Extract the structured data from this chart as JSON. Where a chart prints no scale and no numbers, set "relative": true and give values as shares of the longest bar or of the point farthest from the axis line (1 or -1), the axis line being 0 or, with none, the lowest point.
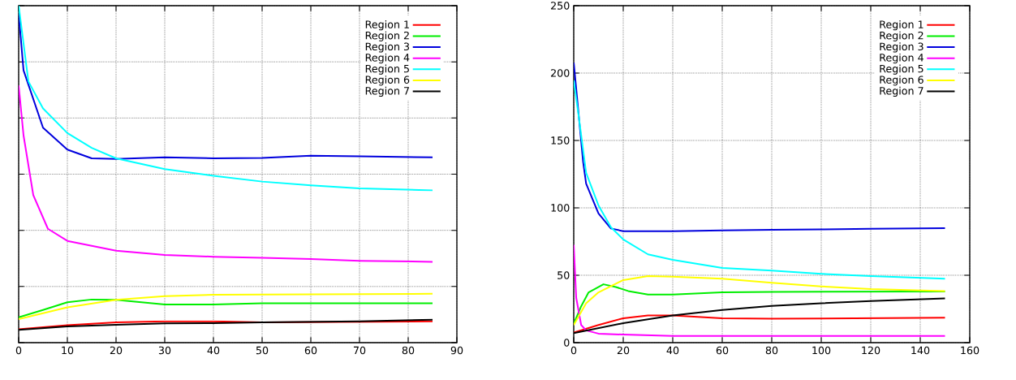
{
  "chart_data": [
    {
      "type": "line",
      "relative": true,
      "xlim": [
        0,
        90
      ],
      "xticks": [
        0,
        10,
        20,
        30,
        40,
        50,
        60,
        70,
        80,
        90
      ],
      "grid": true,
      "legend": "top right",
      "series": [
        {
          "name": "Region 1",
          "color": "#ff0000",
          "x": [
            0,
            10,
            20,
            30,
            40,
            50,
            85
          ],
          "values": [
            0.04,
            0.052,
            0.06,
            0.063,
            0.063,
            0.06,
            0.063
          ]
        },
        {
          "name": "Region 2",
          "color": "#00ee00",
          "x": [
            0,
            5,
            10,
            15,
            20,
            30,
            40,
            50,
            60,
            85
          ],
          "values": [
            0.075,
            0.097,
            0.12,
            0.128,
            0.127,
            0.113,
            0.113,
            0.117,
            0.117,
            0.117
          ]
        },
        {
          "name": "Region 3",
          "color": "#0000dd",
          "x": [
            0,
            1,
            5,
            10,
            15,
            20,
            30,
            40,
            50,
            60,
            70,
            85
          ],
          "values": [
            0.977,
            0.808,
            0.638,
            0.573,
            0.547,
            0.545,
            0.55,
            0.547,
            0.548,
            0.555,
            0.553,
            0.55
          ]
        },
        {
          "name": "Region 4",
          "color": "#ff00ff",
          "x": [
            0,
            1,
            3,
            6,
            10,
            20,
            30,
            40,
            50,
            60,
            70,
            85
          ],
          "values": [
            0.763,
            0.615,
            0.438,
            0.338,
            0.302,
            0.273,
            0.26,
            0.255,
            0.252,
            0.248,
            0.243,
            0.24
          ]
        },
        {
          "name": "Region 5",
          "color": "#00ffff",
          "x": [
            0,
            2,
            5,
            10,
            15,
            20,
            30,
            40,
            50,
            60,
            70,
            85
          ],
          "values": [
            1,
            0.775,
            0.695,
            0.622,
            0.578,
            0.547,
            0.515,
            0.495,
            0.478,
            0.467,
            0.458,
            0.452
          ]
        },
        {
          "name": "Region 6",
          "color": "#ffff00",
          "x": [
            0,
            10,
            20,
            30,
            40,
            50,
            85
          ],
          "values": [
            0.07,
            0.105,
            0.127,
            0.138,
            0.142,
            0.143,
            0.145
          ]
        },
        {
          "name": "Region 7",
          "color": "#000000",
          "x": [
            0,
            10,
            20,
            30,
            40,
            50,
            70,
            85
          ],
          "values": [
            0.038,
            0.048,
            0.053,
            0.057,
            0.058,
            0.06,
            0.063,
            0.068
          ]
        }
      ]
    },
    {
      "type": "line",
      "xlim": [
        0,
        160
      ],
      "xticks": [
        0,
        20,
        40,
        60,
        80,
        100,
        120,
        140,
        160
      ],
      "ylim": [
        0,
        250
      ],
      "yticks": [
        0,
        50,
        100,
        150,
        200,
        250
      ],
      "grid": true,
      "legend": "top right",
      "series": [
        {
          "name": "Region 1",
          "color": "#ff0000",
          "x": [
            0,
            10,
            20,
            30,
            40,
            60,
            80,
            150
          ],
          "values": [
            7.5,
            13.1,
            18.1,
            20.2,
            20.2,
            18.1,
            17.7,
            18.5
          ]
        },
        {
          "name": "Region 2",
          "color": "#00ee00",
          "x": [
            0,
            3,
            6,
            12,
            17,
            22,
            30,
            40,
            60,
            80,
            150
          ],
          "values": [
            14,
            27,
            37.3,
            43.3,
            41.3,
            38.3,
            35.7,
            35.7,
            37.3,
            37.7,
            37.9
          ]
        },
        {
          "name": "Region 3",
          "color": "#0000dd",
          "x": [
            0,
            3.8,
            5,
            10,
            15,
            20,
            40,
            60,
            80,
            100,
            120,
            150
          ],
          "values": [
            207.7,
            134,
            118,
            95.8,
            84.7,
            82.7,
            82.7,
            83.3,
            83.7,
            84,
            84.5,
            85
          ]
        },
        {
          "name": "Region 4",
          "color": "#ff00ff",
          "x": [
            0,
            1,
            3,
            5,
            10,
            20,
            40,
            150
          ],
          "values": [
            72.6,
            33.3,
            13.1,
            9.1,
            6.7,
            6,
            5,
            5
          ]
        },
        {
          "name": "Region 5",
          "color": "#00ffff",
          "x": [
            0,
            2,
            5,
            10,
            15,
            20,
            30,
            40,
            60,
            80,
            100,
            120,
            150
          ],
          "values": [
            194.6,
            168,
            126,
            101.8,
            85.7,
            76.6,
            65.5,
            61.5,
            55.4,
            53.4,
            51,
            49.4,
            47.4
          ]
        },
        {
          "name": "Region 6",
          "color": "#ffff00",
          "x": [
            0,
            5,
            10,
            20,
            30,
            40,
            60,
            80,
            100,
            120,
            150
          ],
          "values": [
            13.1,
            29.2,
            37.3,
            46.4,
            49.4,
            49,
            47.4,
            44.4,
            41.7,
            39.7,
            38.3
          ]
        },
        {
          "name": "Region 7",
          "color": "#000000",
          "x": [
            0,
            20,
            40,
            60,
            80,
            100,
            120,
            150
          ],
          "values": [
            7,
            14.5,
            20.2,
            24.2,
            27.2,
            29.2,
            30.8,
            32.9
          ]
        }
      ]
    }
  ]
}
